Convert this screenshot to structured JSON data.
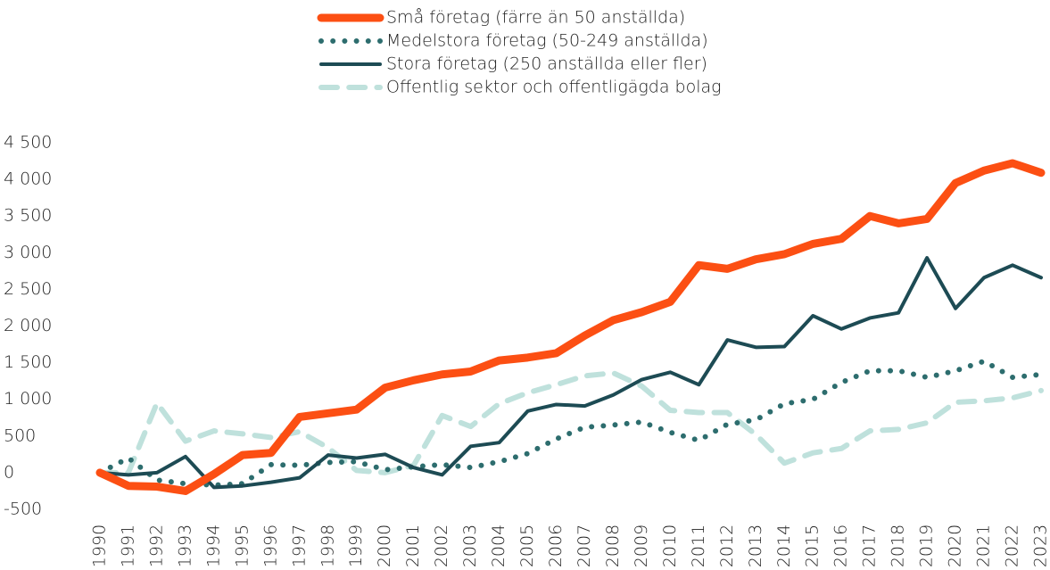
{
  "chart_data": {
    "type": "line",
    "categories": [
      "1990",
      "1991",
      "1992",
      "1993",
      "1994",
      "1995",
      "1996",
      "1997",
      "1998",
      "1999",
      "2000",
      "2001",
      "2002",
      "2003",
      "2004",
      "2005",
      "2006",
      "2007",
      "2008",
      "2009",
      "2010",
      "2011",
      "2012",
      "2013",
      "2014",
      "2015",
      "2016",
      "2017",
      "2018",
      "2019",
      "2020",
      "2021",
      "2022",
      "2023"
    ],
    "series": [
      {
        "name": "Små företag (färre än 50 anställda)",
        "color": "#fc4f13",
        "style": "solid",
        "width": 9,
        "values": [
          0,
          -180,
          -190,
          -250,
          -20,
          240,
          270,
          760,
          810,
          860,
          1160,
          1260,
          1340,
          1380,
          1530,
          1570,
          1630,
          1870,
          2080,
          2190,
          2330,
          2830,
          2780,
          2910,
          2980,
          3120,
          3190,
          3500,
          3400,
          3460,
          3950,
          4120,
          4220,
          4090
        ]
      },
      {
        "name": "Medelstora företag (50-249 anställda)",
        "color": "#2d6d6e",
        "style": "dotted",
        "width": 6,
        "values": [
          0,
          200,
          -100,
          -150,
          -170,
          -150,
          110,
          100,
          140,
          150,
          40,
          80,
          110,
          70,
          150,
          260,
          460,
          620,
          650,
          690,
          550,
          440,
          660,
          720,
          940,
          1000,
          1230,
          1390,
          1390,
          1300,
          1390,
          1520,
          1300,
          1340
        ]
      },
      {
        "name": "Stora företag (250 anställda eller fler)",
        "color": "#1d4b54",
        "style": "solid",
        "width": 4,
        "values": [
          0,
          -30,
          0,
          220,
          -200,
          -180,
          -130,
          -70,
          240,
          200,
          250,
          70,
          -30,
          360,
          410,
          840,
          930,
          910,
          1060,
          1270,
          1370,
          1200,
          1810,
          1710,
          1720,
          2140,
          1960,
          2110,
          2180,
          2930,
          2240,
          2660,
          2830,
          2660
        ]
      },
      {
        "name": "Offentlig sektor och offentligägda bolag",
        "color": "#bfe1dc",
        "style": "dashed",
        "width": 6,
        "values": [
          0,
          0,
          950,
          430,
          570,
          530,
          480,
          560,
          340,
          30,
          0,
          100,
          780,
          630,
          940,
          1090,
          1200,
          1320,
          1360,
          1180,
          850,
          820,
          820,
          520,
          130,
          270,
          330,
          570,
          590,
          680,
          960,
          980,
          1020,
          1120
        ]
      }
    ],
    "ylim": [
      -500,
      4500
    ],
    "yticks": [
      -500,
      0,
      500,
      {
        "value": 1000,
        "label": "1 000"
      },
      {
        "value": 1500,
        "label": "1 500"
      },
      {
        "value": 2000,
        "label": "2 000"
      },
      {
        "value": 2500,
        "label": "2 500"
      },
      {
        "value": 3000,
        "label": "3 000"
      },
      {
        "value": 3500,
        "label": "3 500"
      },
      {
        "value": 4000,
        "label": "4 000"
      },
      {
        "value": 4500,
        "label": "4 500"
      }
    ],
    "grid": false
  }
}
